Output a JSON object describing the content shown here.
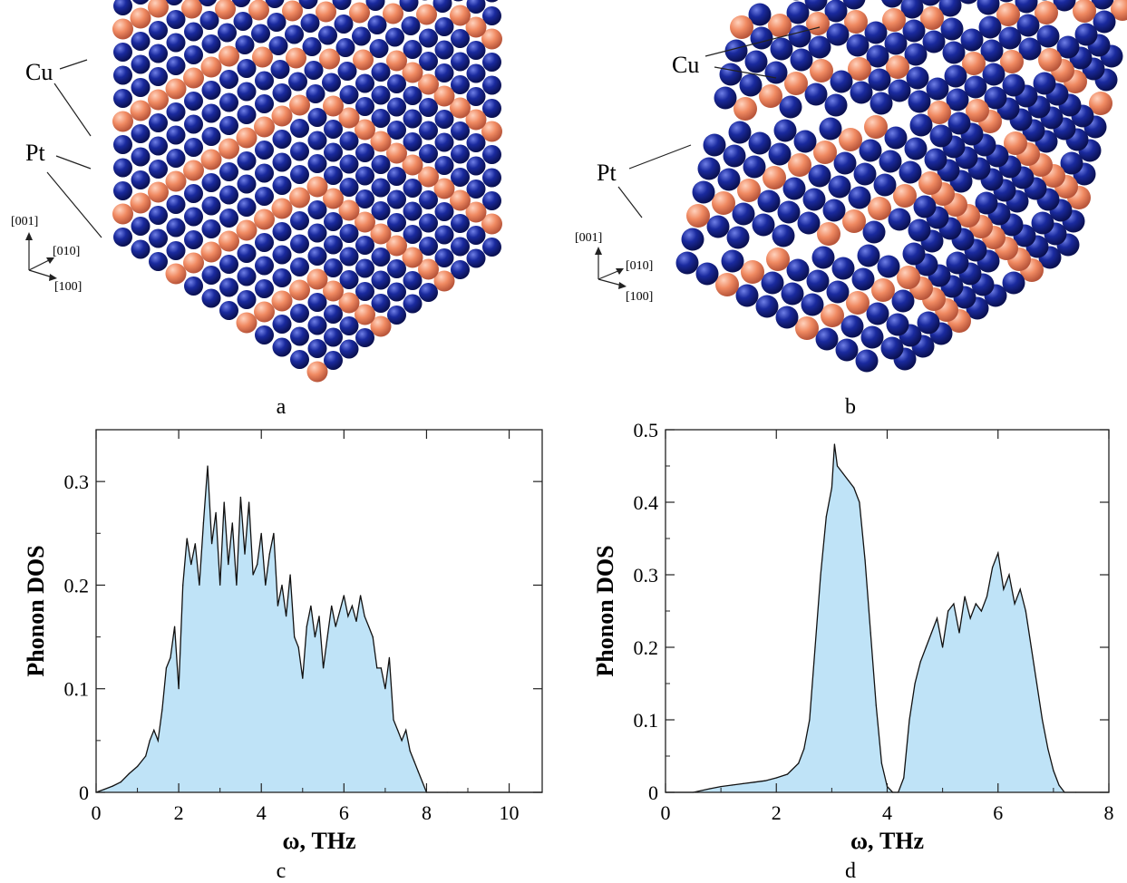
{
  "figure": {
    "panels": [
      {
        "id": "a",
        "caption": "a",
        "labels": {
          "cu": "Cu",
          "pt": "Pt"
        },
        "axes": {
          "z": "[001]",
          "y": "[010]",
          "x": "[100]"
        }
      },
      {
        "id": "b",
        "caption": "b",
        "labels": {
          "cu": "Cu",
          "pt": "Pt"
        },
        "axes": {
          "z": "[001]",
          "y": "[010]",
          "x": "[100]"
        }
      },
      {
        "id": "c",
        "caption": "c"
      },
      {
        "id": "d",
        "caption": "d"
      }
    ],
    "colors": {
      "pt_atom": "#1a2a9e",
      "cu_atom": "#f08a62",
      "dos_fill": "#bfe3f7",
      "dos_line": "#111111"
    }
  },
  "chart_data": [
    {
      "type": "area",
      "panel": "c",
      "xlabel": "ω, THz",
      "ylabel": "Phonon DOS",
      "xlim": [
        0,
        10.8
      ],
      "ylim": [
        0,
        0.35
      ],
      "xticks": [
        0,
        2,
        4,
        6,
        8,
        10
      ],
      "yticks": [
        0,
        0.1,
        0.2,
        0.3
      ],
      "ytick_labels": [
        "0",
        "0.1",
        "0.2",
        "0.3"
      ],
      "grid": false,
      "x": [
        0.0,
        0.2,
        0.4,
        0.6,
        0.8,
        1.0,
        1.2,
        1.3,
        1.4,
        1.5,
        1.6,
        1.7,
        1.8,
        1.9,
        2.0,
        2.1,
        2.2,
        2.3,
        2.4,
        2.5,
        2.6,
        2.7,
        2.8,
        2.9,
        3.0,
        3.1,
        3.2,
        3.3,
        3.4,
        3.5,
        3.6,
        3.7,
        3.8,
        3.9,
        4.0,
        4.1,
        4.2,
        4.3,
        4.4,
        4.5,
        4.6,
        4.7,
        4.8,
        4.9,
        5.0,
        5.1,
        5.2,
        5.3,
        5.4,
        5.5,
        5.6,
        5.7,
        5.8,
        5.9,
        6.0,
        6.1,
        6.2,
        6.3,
        6.4,
        6.5,
        6.6,
        6.7,
        6.8,
        6.9,
        7.0,
        7.1,
        7.2,
        7.3,
        7.4,
        7.5,
        7.6,
        7.7,
        7.8,
        7.9,
        8.0,
        8.5,
        10.8
      ],
      "y": [
        0.0,
        0.003,
        0.006,
        0.01,
        0.018,
        0.025,
        0.035,
        0.05,
        0.06,
        0.05,
        0.08,
        0.12,
        0.13,
        0.16,
        0.1,
        0.2,
        0.245,
        0.22,
        0.24,
        0.2,
        0.26,
        0.315,
        0.24,
        0.27,
        0.2,
        0.28,
        0.22,
        0.26,
        0.2,
        0.285,
        0.23,
        0.28,
        0.21,
        0.22,
        0.25,
        0.2,
        0.23,
        0.25,
        0.18,
        0.2,
        0.17,
        0.21,
        0.15,
        0.14,
        0.11,
        0.16,
        0.18,
        0.15,
        0.17,
        0.12,
        0.15,
        0.18,
        0.16,
        0.175,
        0.19,
        0.17,
        0.18,
        0.165,
        0.19,
        0.17,
        0.16,
        0.15,
        0.12,
        0.12,
        0.1,
        0.13,
        0.07,
        0.06,
        0.05,
        0.06,
        0.04,
        0.03,
        0.02,
        0.01,
        0.0,
        0.0,
        0.0
      ]
    },
    {
      "type": "area",
      "panel": "d",
      "xlabel": "ω, THz",
      "ylabel": "Phonon DOS",
      "xlim": [
        0,
        8
      ],
      "ylim": [
        0,
        0.5
      ],
      "xticks": [
        0,
        2,
        4,
        6,
        8
      ],
      "yticks": [
        0,
        0.1,
        0.2,
        0.3,
        0.4,
        0.5
      ],
      "ytick_labels": [
        "0",
        "0.1",
        "0.2",
        "0.3",
        "0.4",
        "0.5"
      ],
      "grid": false,
      "x": [
        0.0,
        0.5,
        0.8,
        1.0,
        1.2,
        1.4,
        1.6,
        1.8,
        2.0,
        2.2,
        2.4,
        2.5,
        2.6,
        2.7,
        2.8,
        2.9,
        3.0,
        3.05,
        3.1,
        3.2,
        3.3,
        3.4,
        3.5,
        3.6,
        3.7,
        3.8,
        3.9,
        4.0,
        4.1,
        4.2,
        4.3,
        4.4,
        4.5,
        4.6,
        4.7,
        4.8,
        4.9,
        5.0,
        5.1,
        5.2,
        5.3,
        5.4,
        5.5,
        5.6,
        5.7,
        5.8,
        5.9,
        6.0,
        6.1,
        6.2,
        6.3,
        6.4,
        6.5,
        6.6,
        6.7,
        6.8,
        6.9,
        7.0,
        7.1,
        7.2,
        7.4,
        8.0
      ],
      "y": [
        0.0,
        0.0,
        0.005,
        0.008,
        0.01,
        0.012,
        0.014,
        0.016,
        0.02,
        0.025,
        0.04,
        0.06,
        0.1,
        0.2,
        0.3,
        0.38,
        0.42,
        0.48,
        0.45,
        0.44,
        0.43,
        0.42,
        0.4,
        0.32,
        0.22,
        0.12,
        0.04,
        0.008,
        0.0,
        0.0,
        0.02,
        0.1,
        0.15,
        0.18,
        0.2,
        0.22,
        0.24,
        0.2,
        0.25,
        0.26,
        0.22,
        0.27,
        0.24,
        0.26,
        0.25,
        0.27,
        0.31,
        0.33,
        0.28,
        0.3,
        0.26,
        0.28,
        0.25,
        0.2,
        0.15,
        0.1,
        0.06,
        0.03,
        0.01,
        0.0,
        0.0,
        0.0
      ]
    }
  ]
}
